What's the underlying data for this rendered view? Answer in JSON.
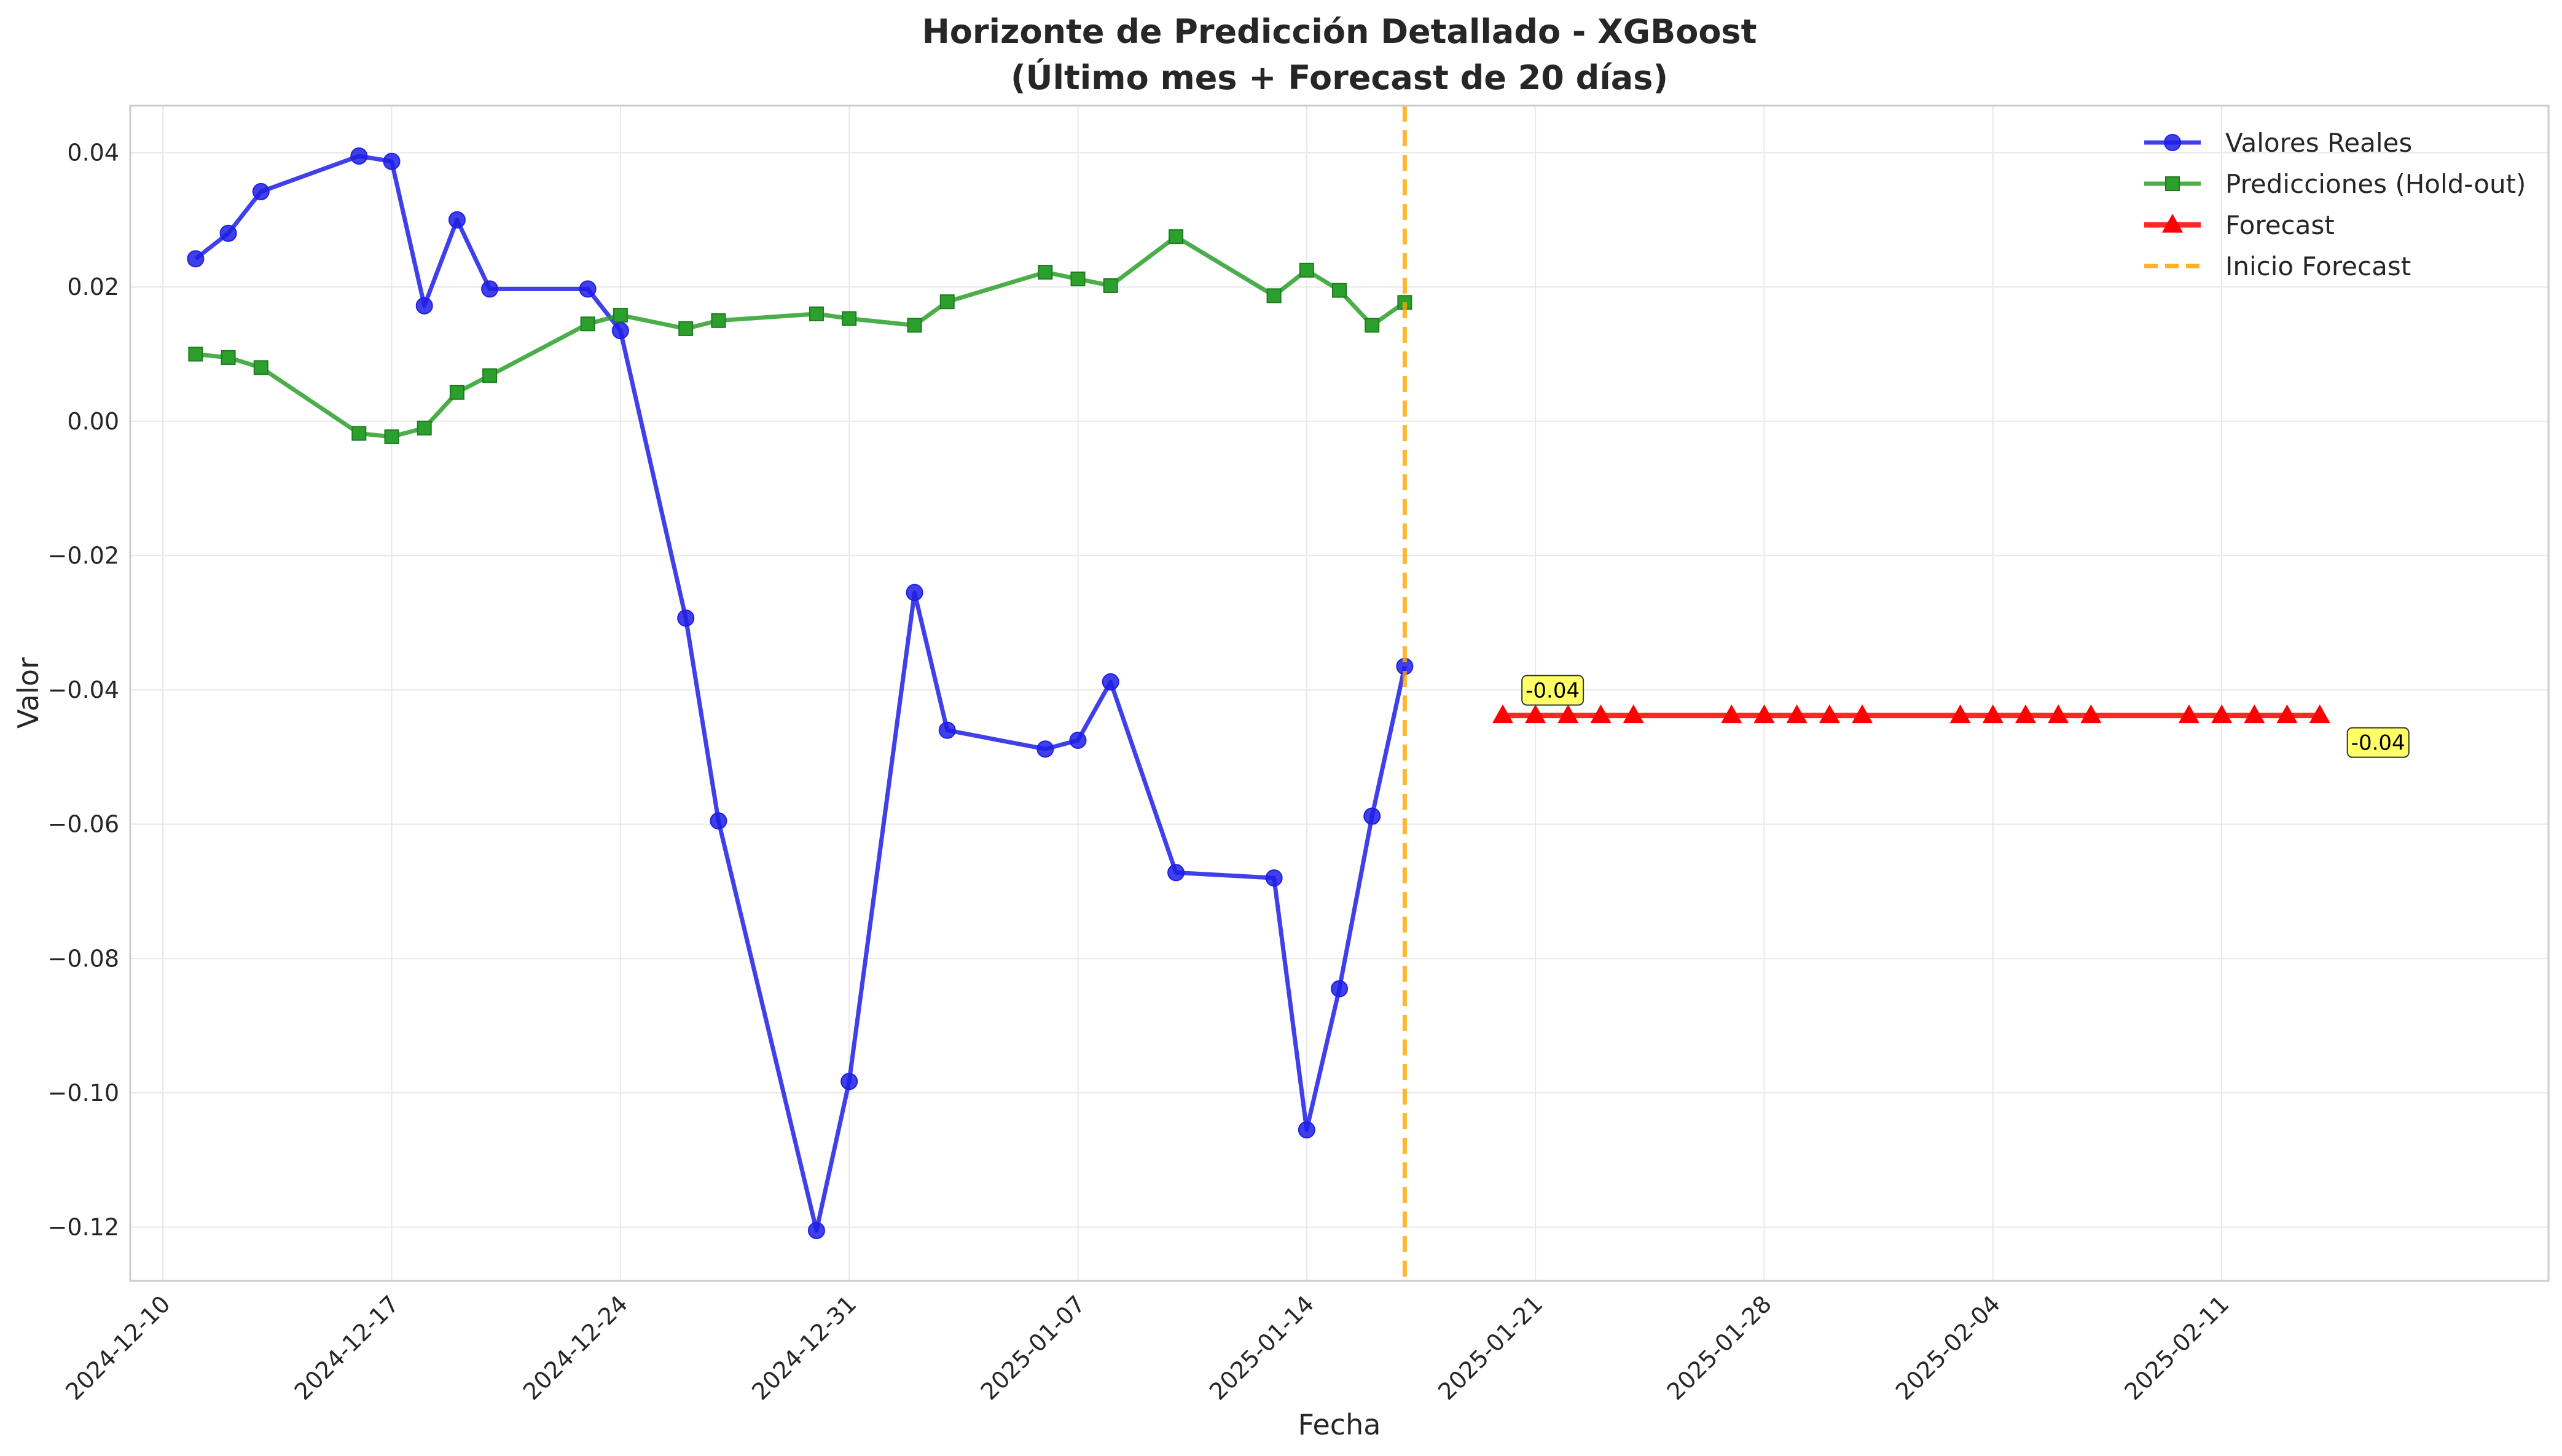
{
  "chart_data": {
    "type": "line",
    "title": "Horizonte de Predicción Detallado - XGBoost",
    "subtitle": "(Último mes + Forecast de 20 días)",
    "xlabel": "Fecha",
    "ylabel": "Valor",
    "xlim": [
      "2024-12-09",
      "2025-02-21"
    ],
    "ylim": [
      -0.128,
      0.047
    ],
    "x_ticks": [
      "2024-12-10",
      "2024-12-17",
      "2024-12-24",
      "2024-12-31",
      "2025-01-07",
      "2025-01-14",
      "2025-01-21",
      "2025-01-28",
      "2025-02-04",
      "2025-02-11"
    ],
    "y_ticks": [
      0.04,
      0.02,
      0.0,
      -0.02,
      -0.04,
      -0.06,
      -0.08,
      -0.1,
      -0.12
    ],
    "y_tick_labels": [
      "0.04",
      "0.02",
      "0.00",
      "−0.02",
      "−0.04",
      "−0.06",
      "−0.08",
      "−0.10",
      "−0.12"
    ],
    "grid": true,
    "legend_position": "top-right",
    "series": [
      {
        "name": "Valores Reales",
        "color": "#1f1fe6",
        "marker": "circle",
        "x": [
          "2024-12-11",
          "2024-12-12",
          "2024-12-13",
          "2024-12-16",
          "2024-12-17",
          "2024-12-18",
          "2024-12-19",
          "2024-12-20",
          "2024-12-23",
          "2024-12-24",
          "2024-12-26",
          "2024-12-27",
          "2024-12-30",
          "2024-12-31",
          "2025-01-02",
          "2025-01-03",
          "2025-01-06",
          "2025-01-07",
          "2025-01-08",
          "2025-01-10",
          "2025-01-13",
          "2025-01-14",
          "2025-01-15",
          "2025-01-16",
          "2025-01-17"
        ],
        "values": [
          0.0242,
          0.028,
          0.0342,
          0.0395,
          0.0387,
          0.0172,
          0.03,
          0.0197,
          0.0197,
          0.0135,
          -0.0293,
          -0.0595,
          -0.1205,
          -0.0983,
          -0.0255,
          -0.046,
          -0.0488,
          -0.0475,
          -0.0388,
          -0.0672,
          -0.068,
          -0.1055,
          -0.0845,
          -0.0588,
          -0.0365
        ]
      },
      {
        "name": "Predicciones (Hold-out)",
        "color": "#2ca02c",
        "marker": "square",
        "x": [
          "2024-12-11",
          "2024-12-12",
          "2024-12-13",
          "2024-12-16",
          "2024-12-17",
          "2024-12-18",
          "2024-12-19",
          "2024-12-20",
          "2024-12-23",
          "2024-12-24",
          "2024-12-26",
          "2024-12-27",
          "2024-12-30",
          "2024-12-31",
          "2025-01-02",
          "2025-01-03",
          "2025-01-06",
          "2025-01-07",
          "2025-01-08",
          "2025-01-10",
          "2025-01-13",
          "2025-01-14",
          "2025-01-15",
          "2025-01-16",
          "2025-01-17"
        ],
        "values": [
          0.01,
          0.0095,
          0.008,
          -0.0018,
          -0.0023,
          -0.001,
          0.0043,
          0.0068,
          0.0145,
          0.0158,
          0.0138,
          0.015,
          0.016,
          0.0153,
          0.0143,
          0.0178,
          0.0222,
          0.0212,
          0.0202,
          0.0275,
          0.0187,
          0.0225,
          0.0195,
          0.0143,
          0.0177
        ]
      },
      {
        "name": "Forecast",
        "color": "#ff0000",
        "marker": "triangle",
        "x": [
          "2025-01-20",
          "2025-01-21",
          "2025-01-22",
          "2025-01-23",
          "2025-01-24",
          "2025-01-27",
          "2025-01-28",
          "2025-01-29",
          "2025-01-30",
          "2025-01-31",
          "2025-02-03",
          "2025-02-04",
          "2025-02-05",
          "2025-02-06",
          "2025-02-07",
          "2025-02-10",
          "2025-02-11",
          "2025-02-12",
          "2025-02-13",
          "2025-02-14"
        ],
        "values": [
          -0.0438,
          -0.0438,
          -0.0438,
          -0.0438,
          -0.0438,
          -0.0438,
          -0.0438,
          -0.0438,
          -0.0438,
          -0.0438,
          -0.0438,
          -0.0438,
          -0.0438,
          -0.0438,
          -0.0438,
          -0.0438,
          -0.0438,
          -0.0438,
          -0.0438,
          -0.0438
        ]
      }
    ],
    "vertical_line": {
      "name": "Inicio Forecast",
      "x": "2025-01-17",
      "color": "#ffa500",
      "style": "dashed"
    },
    "annotations": [
      {
        "text": "-0.04",
        "x": "2025-01-21",
        "y": -0.0438,
        "placement": "above"
      },
      {
        "text": "-0.04",
        "x": "2025-02-14",
        "y": -0.0438,
        "placement": "below-right"
      }
    ]
  }
}
